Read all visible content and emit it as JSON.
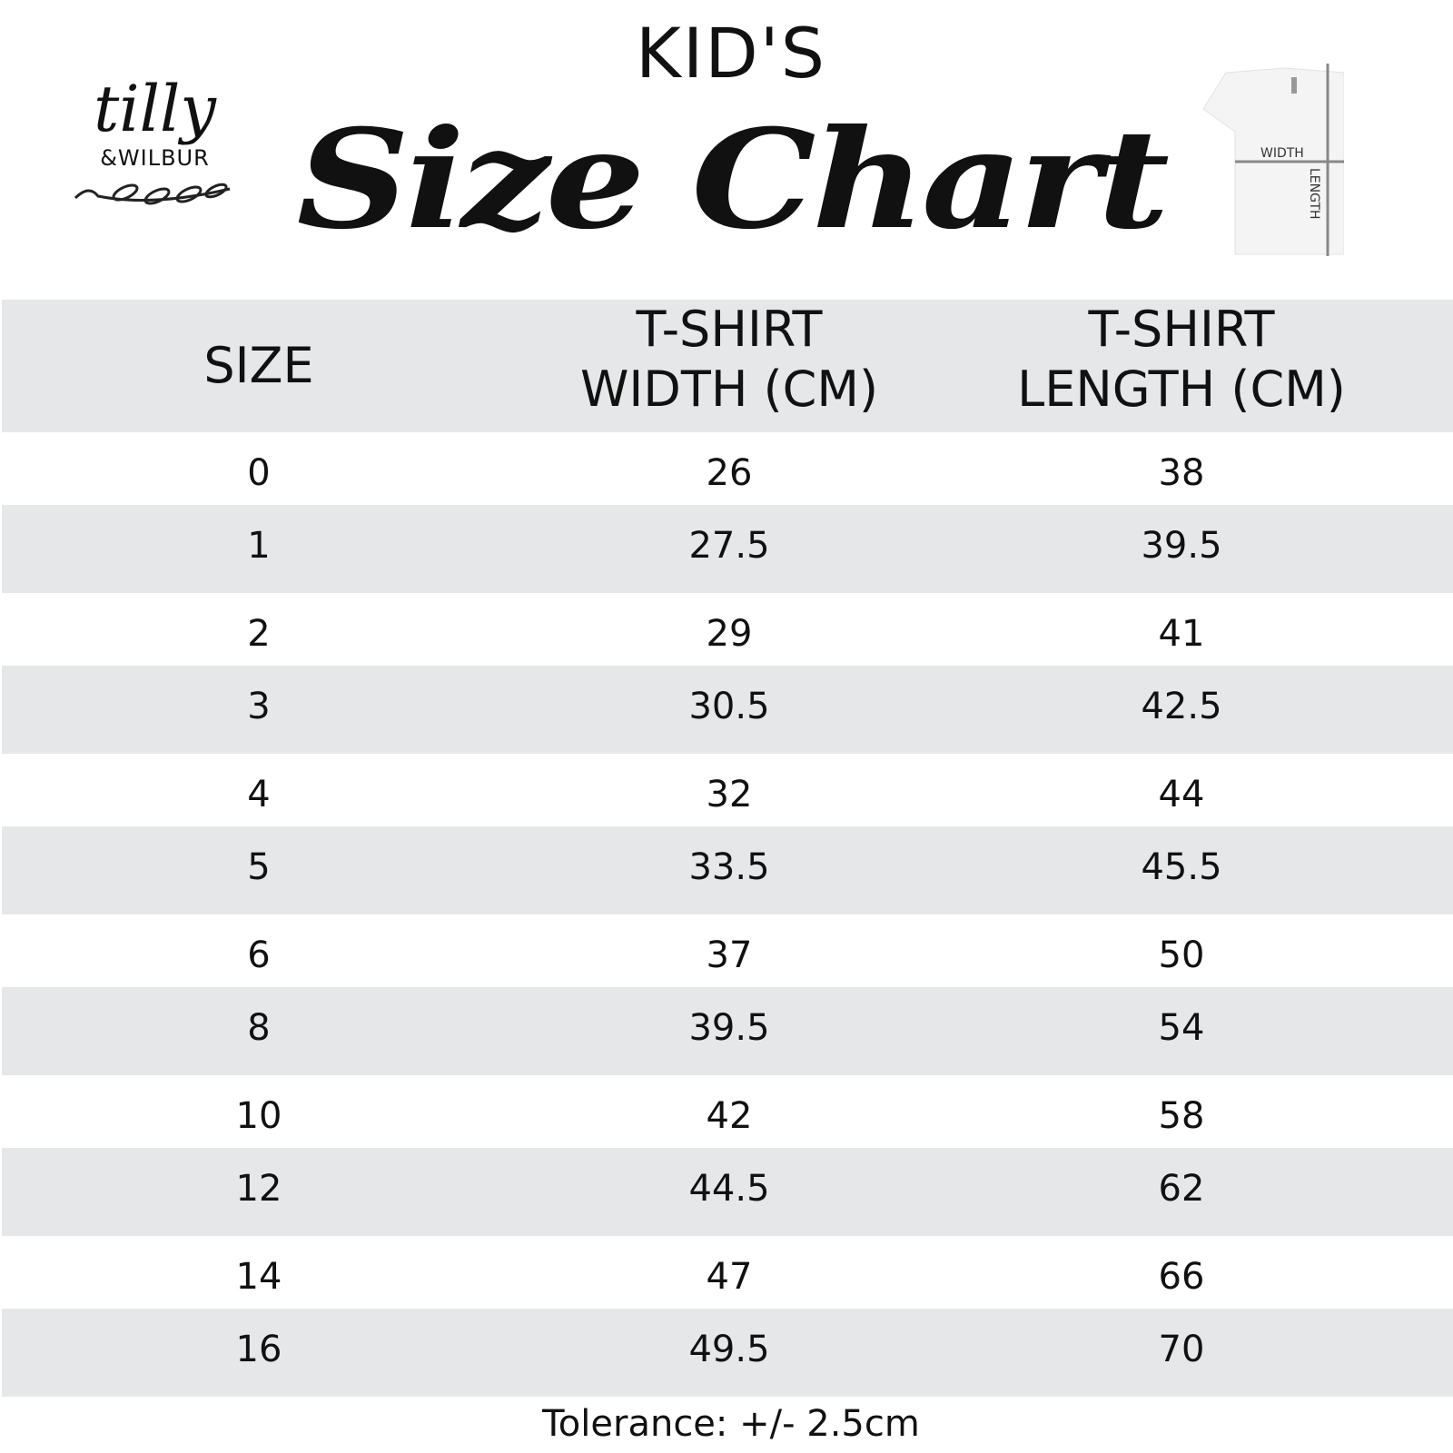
{
  "heading": {
    "kids": "KID'S",
    "title": "Size Chart"
  },
  "logo": {
    "line1": "tilly",
    "line2": "&WILBUR"
  },
  "diagram": {
    "width_label": "WIDTH",
    "length_label": "LENGTH"
  },
  "table": {
    "headers": {
      "size": "SIZE",
      "width_line1": "T-SHIRT",
      "width_line2": "WIDTH (CM)",
      "length_line1": "T-SHIRT",
      "length_line2": "LENGTH (CM)"
    },
    "rows": [
      {
        "size": "0",
        "width": "26",
        "length": "38"
      },
      {
        "size": "1",
        "width": "27.5",
        "length": "39.5"
      },
      {
        "size": "2",
        "width": "29",
        "length": "41"
      },
      {
        "size": "3",
        "width": "30.5",
        "length": "42.5"
      },
      {
        "size": "4",
        "width": "32",
        "length": "44"
      },
      {
        "size": "5",
        "width": "33.5",
        "length": "45.5"
      },
      {
        "size": "6",
        "width": "37",
        "length": "50"
      },
      {
        "size": "8",
        "width": "39.5",
        "length": "54"
      },
      {
        "size": "10",
        "width": "42",
        "length": "58"
      },
      {
        "size": "12",
        "width": "44.5",
        "length": "62"
      },
      {
        "size": "14",
        "width": "47",
        "length": "66"
      },
      {
        "size": "16",
        "width": "49.5",
        "length": "70"
      }
    ]
  },
  "footer": {
    "tolerance": "Tolerance: +/- 2.5cm"
  }
}
